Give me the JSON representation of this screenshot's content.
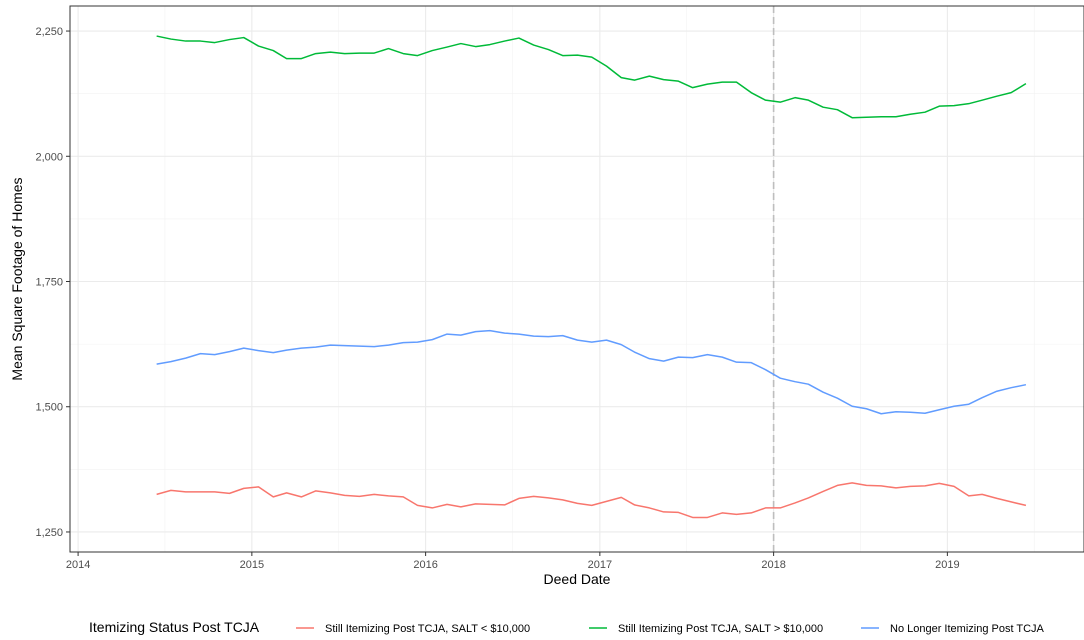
{
  "chart_data": {
    "type": "line",
    "xlabel": "Deed Date",
    "ylabel": "Mean Square Footage of Homes",
    "xlim": [
      "2013-12-15",
      "2019-10-15"
    ],
    "ylim": [
      1210,
      2300
    ],
    "x_ticks": [
      {
        "value": "2014-01-01",
        "label": "2014"
      },
      {
        "value": "2015-01-01",
        "label": "2015"
      },
      {
        "value": "2016-01-01",
        "label": "2016"
      },
      {
        "value": "2017-01-01",
        "label": "2017"
      },
      {
        "value": "2018-01-01",
        "label": "2018"
      },
      {
        "value": "2019-01-01",
        "label": "2019"
      }
    ],
    "y_ticks": [
      {
        "value": 1250,
        "label": "1,250"
      },
      {
        "value": 1500,
        "label": "1,500"
      },
      {
        "value": 1750,
        "label": "1,750"
      },
      {
        "value": 2000,
        "label": "2,000"
      },
      {
        "value": 2250,
        "label": "2,250"
      }
    ],
    "grid": true,
    "vline": {
      "x": "2018-01-01",
      "style": "dashed",
      "color": "#bebebe"
    },
    "legend": {
      "title": "Itemizing Status Post TCJA",
      "placement": "bottom"
    },
    "x": [
      "2014-06",
      "2014-07",
      "2014-08",
      "2014-09",
      "2014-10",
      "2014-11",
      "2014-12",
      "2015-01",
      "2015-02",
      "2015-03",
      "2015-04",
      "2015-05",
      "2015-06",
      "2015-07",
      "2015-08",
      "2015-09",
      "2015-10",
      "2015-11",
      "2015-12",
      "2016-01",
      "2016-02",
      "2016-03",
      "2016-04",
      "2016-05",
      "2016-06",
      "2016-07",
      "2016-08",
      "2016-09",
      "2016-10",
      "2016-11",
      "2016-12",
      "2017-01",
      "2017-02",
      "2017-03",
      "2017-04",
      "2017-05",
      "2017-06",
      "2017-07",
      "2017-08",
      "2017-09",
      "2017-10",
      "2017-11",
      "2017-12",
      "2018-01",
      "2018-02",
      "2018-03",
      "2018-04",
      "2018-05",
      "2018-06",
      "2018-07",
      "2018-08",
      "2018-09",
      "2018-10",
      "2018-11",
      "2018-12",
      "2019-01",
      "2019-02",
      "2019-03",
      "2019-04",
      "2019-05",
      "2019-06"
    ],
    "series": [
      {
        "name": "Still Itemizing Post TCJA, SALT < $10,000",
        "color": "#F8766D",
        "values": [
          1325,
          1333,
          1330,
          1330,
          1330,
          1327,
          1337,
          1340,
          1320,
          1328,
          1320,
          1332,
          1328,
          1323,
          1321,
          1325,
          1322,
          1320,
          1303,
          1298,
          1305,
          1300,
          1306,
          1305,
          1304,
          1317,
          1321,
          1318,
          1314,
          1307,
          1303,
          1311,
          1319,
          1304,
          1298,
          1290,
          1289,
          1279,
          1279,
          1288,
          1285,
          1288,
          1298,
          1298,
          1308,
          1318,
          1331,
          1343,
          1348,
          1343,
          1342,
          1338,
          1341,
          1342,
          1347,
          1341,
          1322,
          1325,
          1317,
          1310,
          1303
        ]
      },
      {
        "name": "Still Itemizing Post TCJA, SALT > $10,000",
        "color": "#00BA38",
        "values": [
          2240,
          2234,
          2230,
          2230,
          2227,
          2233,
          2237,
          2220,
          2211,
          2195,
          2195,
          2205,
          2208,
          2205,
          2206,
          2206,
          2215,
          2205,
          2201,
          2211,
          2218,
          2225,
          2219,
          2223,
          2230,
          2236,
          2222,
          2213,
          2201,
          2202,
          2198,
          2180,
          2157,
          2152,
          2160,
          2153,
          2150,
          2137,
          2144,
          2148,
          2148,
          2127,
          2112,
          2108,
          2117,
          2112,
          2098,
          2093,
          2077,
          2078,
          2079,
          2079,
          2084,
          2088,
          2100,
          2101,
          2105,
          2112,
          2120,
          2127,
          2145
        ]
      },
      {
        "name": "No Longer Itemizing Post TCJA",
        "color": "#619CFF",
        "values": [
          1585,
          1590,
          1597,
          1606,
          1604,
          1610,
          1617,
          1612,
          1608,
          1613,
          1617,
          1619,
          1623,
          1622,
          1621,
          1620,
          1623,
          1628,
          1629,
          1634,
          1645,
          1643,
          1650,
          1652,
          1647,
          1645,
          1641,
          1640,
          1642,
          1633,
          1629,
          1633,
          1624,
          1609,
          1596,
          1591,
          1599,
          1598,
          1604,
          1599,
          1589,
          1588,
          1574,
          1557,
          1550,
          1545,
          1529,
          1517,
          1501,
          1496,
          1486,
          1490,
          1489,
          1487,
          1494,
          1501,
          1505,
          1518,
          1531,
          1538,
          1544
        ]
      }
    ]
  }
}
